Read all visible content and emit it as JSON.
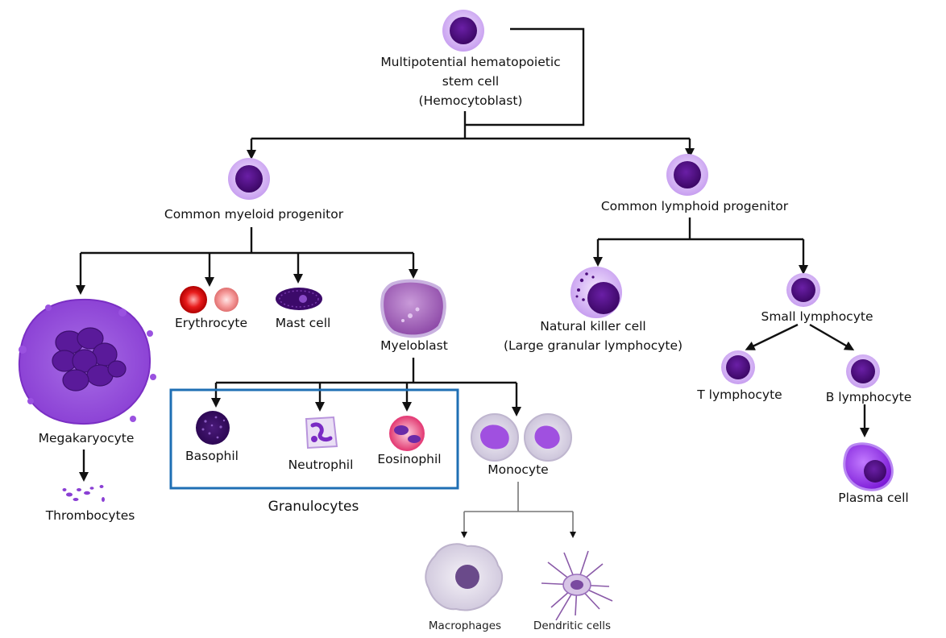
{
  "labels": {
    "stem_line1": "Multipotential hematopoietic",
    "stem_line2": "stem cell",
    "stem_line3": "(Hemocytoblast)",
    "myeloid": "Common myeloid progenitor",
    "lymphoid": "Common lymphoid progenitor",
    "megakaryocyte": "Megakaryocyte",
    "thrombocytes": "Thrombocytes",
    "erythrocyte": "Erythrocyte",
    "mast_cell": "Mast cell",
    "myeloblast": "Myeloblast",
    "basophil": "Basophil",
    "neutrophil": "Neutrophil",
    "eosinophil": "Eosinophil",
    "granulocytes": "Granulocytes",
    "monocyte": "Monocyte",
    "macrophages": "Macrophages",
    "dendritic": "Dendritic cells",
    "nk_line1": "Natural killer cell",
    "nk_line2": "(Large granular lymphocyte)",
    "small_lymphocyte": "Small lymphocyte",
    "t_lymphocyte": "T lymphocyte",
    "b_lymphocyte": "B lymphocyte",
    "plasma_cell": "Plasma cell"
  },
  "colors": {
    "nucleus": "#4a0a7a",
    "cell_ring": "#d9b8f2",
    "granulocyte_box": "#1f6fb4",
    "line": "#111111"
  }
}
